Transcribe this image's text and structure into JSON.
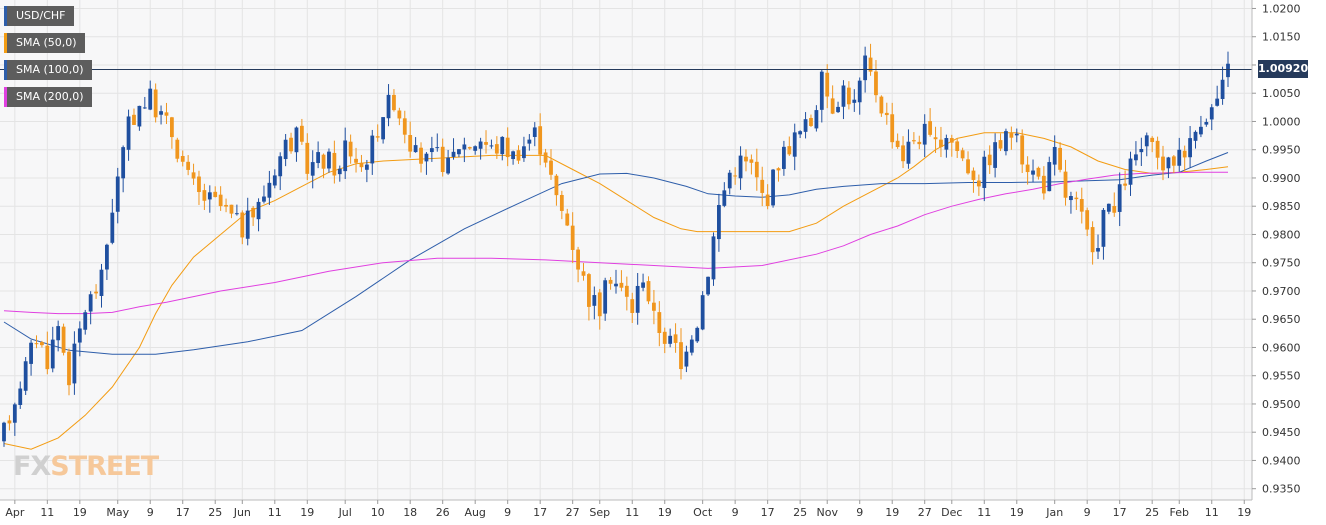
{
  "chart_data": {
    "type": "candlestick",
    "symbol": "USD/CHF",
    "y_ticks": [
      "1.0200",
      "1.0150",
      "1.0100",
      "1.0050",
      "1.0000",
      "0.9950",
      "0.9900",
      "0.9850",
      "0.9800",
      "0.9750",
      "0.9700",
      "0.9650",
      "0.9600",
      "0.9550",
      "0.9500",
      "0.9450",
      "0.9400",
      "0.9350"
    ],
    "x_ticks": [
      "Apr",
      "11",
      "19",
      "May",
      "9",
      "17",
      "25",
      "Jun",
      "11",
      "19",
      "Jul",
      "10",
      "18",
      "26",
      "Aug",
      "9",
      "17",
      "27",
      "Sep",
      "11",
      "19",
      "Oct",
      "9",
      "17",
      "25",
      "Nov",
      "9",
      "19",
      "27",
      "Dec",
      "11",
      "19",
      "Jan",
      "9",
      "17",
      "25",
      "Feb",
      "11",
      "19"
    ],
    "x_tick_index": [
      2,
      8,
      14,
      21,
      27,
      33,
      39,
      44,
      50,
      56,
      63,
      69,
      75,
      81,
      87,
      93,
      99,
      105,
      110,
      116,
      122,
      129,
      135,
      141,
      147,
      152,
      158,
      164,
      170,
      175,
      181,
      187,
      194,
      200,
      206,
      212,
      217,
      223,
      229
    ],
    "ylim": [
      0.933,
      1.0215
    ],
    "last_price_label": "1.00920",
    "last_price": 1.0092,
    "sma": [
      {
        "name": "SMA (50,0)",
        "color": "#f39c12",
        "points": [
          [
            0,
            0.943
          ],
          [
            5,
            0.942
          ],
          [
            10,
            0.944
          ],
          [
            15,
            0.948
          ],
          [
            20,
            0.953
          ],
          [
            25,
            0.96
          ],
          [
            28,
            0.966
          ],
          [
            31,
            0.971
          ],
          [
            35,
            0.976
          ],
          [
            40,
            0.98
          ],
          [
            45,
            0.984
          ],
          [
            50,
            0.986
          ],
          [
            56,
            0.989
          ],
          [
            60,
            0.991
          ],
          [
            65,
            0.9925
          ],
          [
            70,
            0.993
          ],
          [
            80,
            0.9935
          ],
          [
            90,
            0.994
          ],
          [
            100,
            0.994
          ],
          [
            105,
            0.9915
          ],
          [
            110,
            0.989
          ],
          [
            115,
            0.986
          ],
          [
            120,
            0.983
          ],
          [
            125,
            0.981
          ],
          [
            128,
            0.9805
          ],
          [
            135,
            0.9805
          ],
          [
            145,
            0.9805
          ],
          [
            150,
            0.982
          ],
          [
            155,
            0.985
          ],
          [
            160,
            0.9875
          ],
          [
            165,
            0.99
          ],
          [
            168,
            0.992
          ],
          [
            172,
            0.995
          ],
          [
            176,
            0.997
          ],
          [
            181,
            0.998
          ],
          [
            187,
            0.998
          ],
          [
            192,
            0.997
          ],
          [
            197,
            0.9955
          ],
          [
            202,
            0.993
          ],
          [
            207,
            0.9915
          ],
          [
            212,
            0.9908
          ],
          [
            217,
            0.991
          ],
          [
            222,
            0.9915
          ],
          [
            226,
            0.992
          ]
        ]
      },
      {
        "name": "SMA (100,0)",
        "color": "#2e5eaa",
        "points": [
          [
            0,
            0.9645
          ],
          [
            5,
            0.9615
          ],
          [
            12,
            0.9595
          ],
          [
            20,
            0.9588
          ],
          [
            28,
            0.9588
          ],
          [
            35,
            0.9596
          ],
          [
            45,
            0.961
          ],
          [
            55,
            0.963
          ],
          [
            65,
            0.969
          ],
          [
            75,
            0.9755
          ],
          [
            85,
            0.981
          ],
          [
            95,
            0.9855
          ],
          [
            103,
            0.989
          ],
          [
            110,
            0.9907
          ],
          [
            115,
            0.9908
          ],
          [
            120,
            0.99
          ],
          [
            126,
            0.9885
          ],
          [
            130,
            0.9872
          ],
          [
            135,
            0.9868
          ],
          [
            140,
            0.9866
          ],
          [
            145,
            0.987
          ],
          [
            150,
            0.988
          ],
          [
            155,
            0.9885
          ],
          [
            162,
            0.989
          ],
          [
            170,
            0.989
          ],
          [
            178,
            0.9892
          ],
          [
            186,
            0.9892
          ],
          [
            194,
            0.9893
          ],
          [
            200,
            0.9895
          ],
          [
            206,
            0.9897
          ],
          [
            212,
            0.9905
          ],
          [
            217,
            0.991
          ],
          [
            222,
            0.993
          ],
          [
            226,
            0.9945
          ]
        ]
      },
      {
        "name": "SMA (200,0)",
        "color": "#e040e0",
        "points": [
          [
            0,
            0.9665
          ],
          [
            5,
            0.9662
          ],
          [
            10,
            0.966
          ],
          [
            15,
            0.966
          ],
          [
            20,
            0.9662
          ],
          [
            25,
            0.9672
          ],
          [
            30,
            0.968
          ],
          [
            40,
            0.97
          ],
          [
            50,
            0.9715
          ],
          [
            60,
            0.9735
          ],
          [
            70,
            0.975
          ],
          [
            80,
            0.9758
          ],
          [
            90,
            0.9758
          ],
          [
            100,
            0.9755
          ],
          [
            110,
            0.975
          ],
          [
            120,
            0.9745
          ],
          [
            130,
            0.974
          ],
          [
            140,
            0.9745
          ],
          [
            150,
            0.9765
          ],
          [
            155,
            0.978
          ],
          [
            160,
            0.98
          ],
          [
            165,
            0.9815
          ],
          [
            170,
            0.9835
          ],
          [
            175,
            0.985
          ],
          [
            180,
            0.9862
          ],
          [
            185,
            0.9872
          ],
          [
            190,
            0.988
          ],
          [
            195,
            0.989
          ],
          [
            200,
            0.9898
          ],
          [
            205,
            0.9905
          ],
          [
            210,
            0.9908
          ],
          [
            215,
            0.9909
          ],
          [
            220,
            0.991
          ],
          [
            226,
            0.991
          ]
        ]
      }
    ],
    "price_path": [
      [
        0,
        0.945
      ],
      [
        3,
        0.954
      ],
      [
        6,
        0.962
      ],
      [
        8,
        0.958
      ],
      [
        10,
        0.964
      ],
      [
        12,
        0.955
      ],
      [
        15,
        0.967
      ],
      [
        18,
        0.972
      ],
      [
        20,
        0.985
      ],
      [
        23,
        0.999
      ],
      [
        25,
        1.003
      ],
      [
        27,
        1.004
      ],
      [
        29,
        1.001
      ],
      [
        31,
        0.998
      ],
      [
        34,
        0.99
      ],
      [
        36,
        0.987
      ],
      [
        40,
        0.985
      ],
      [
        44,
        0.981
      ],
      [
        47,
        0.985
      ],
      [
        50,
        0.992
      ],
      [
        52,
        0.996
      ],
      [
        54,
        0.997
      ],
      [
        56,
        0.992
      ],
      [
        58,
        0.993
      ],
      [
        60,
        0.993
      ],
      [
        62,
        0.991
      ],
      [
        63,
        0.996
      ],
      [
        66,
        0.992
      ],
      [
        68,
        0.996
      ],
      [
        70,
        1.002
      ],
      [
        72,
        1.004
      ],
      [
        74,
        0.999
      ],
      [
        76,
        0.994
      ],
      [
        78,
        0.993
      ],
      [
        80,
        0.994
      ],
      [
        82,
        0.992
      ],
      [
        84,
        0.996
      ],
      [
        86,
        0.996
      ],
      [
        88,
        0.997
      ],
      [
        90,
        0.995
      ],
      [
        92,
        0.996
      ],
      [
        94,
        0.994
      ],
      [
        96,
        0.996
      ],
      [
        98,
        0.998
      ],
      [
        100,
        0.994
      ],
      [
        102,
        0.986
      ],
      [
        104,
        0.982
      ],
      [
        106,
        0.975
      ],
      [
        108,
        0.969
      ],
      [
        110,
        0.967
      ],
      [
        112,
        0.973
      ],
      [
        114,
        0.97
      ],
      [
        116,
        0.967
      ],
      [
        118,
        0.973
      ],
      [
        120,
        0.965
      ],
      [
        122,
        0.962
      ],
      [
        124,
        0.96
      ],
      [
        125,
        0.956
      ],
      [
        126,
        0.961
      ],
      [
        128,
        0.965
      ],
      [
        130,
        0.974
      ],
      [
        132,
        0.985
      ],
      [
        134,
        0.991
      ],
      [
        136,
        0.993
      ],
      [
        138,
        0.992
      ],
      [
        140,
        0.987
      ],
      [
        141,
        0.987
      ],
      [
        143,
        0.993
      ],
      [
        145,
        0.996
      ],
      [
        147,
        0.998
      ],
      [
        149,
        1.0
      ],
      [
        151,
        1.007
      ],
      [
        153,
        1.003
      ],
      [
        155,
        1.006
      ],
      [
        157,
        1.003
      ],
      [
        159,
        1.01
      ],
      [
        160,
        1.008
      ],
      [
        162,
        1.003
      ],
      [
        164,
        0.998
      ],
      [
        166,
        0.994
      ],
      [
        168,
        0.997
      ],
      [
        170,
        0.998
      ],
      [
        172,
        0.995
      ],
      [
        174,
        0.998
      ],
      [
        176,
        0.995
      ],
      [
        178,
        0.992
      ],
      [
        180,
        0.99
      ],
      [
        182,
        0.994
      ],
      [
        184,
        0.996
      ],
      [
        186,
        0.998
      ],
      [
        188,
        0.994
      ],
      [
        190,
        0.991
      ],
      [
        192,
        0.989
      ],
      [
        194,
        0.994
      ],
      [
        196,
        0.987
      ],
      [
        198,
        0.985
      ],
      [
        200,
        0.98
      ],
      [
        201,
        0.975
      ],
      [
        203,
        0.984
      ],
      [
        205,
        0.984
      ],
      [
        207,
        0.99
      ],
      [
        209,
        0.994
      ],
      [
        211,
        0.996
      ],
      [
        213,
        0.993
      ],
      [
        215,
        0.992
      ],
      [
        217,
        0.995
      ],
      [
        219,
        0.996
      ],
      [
        221,
        1.001
      ],
      [
        223,
        1.002
      ],
      [
        225,
        1.006
      ],
      [
        226,
        1.009
      ]
    ]
  },
  "legend": [
    {
      "label": "USD/CHF",
      "color": "#2e5eaa"
    },
    {
      "label": "SMA (50,0)",
      "color": "#f39c12"
    },
    {
      "label": "SMA (100,0)",
      "color": "#2e5eaa"
    },
    {
      "label": "SMA (200,0)",
      "color": "#e040e0"
    }
  ],
  "colors": {
    "bull": "#1f4f9f",
    "bear": "#f0961e",
    "grid": "#e4e4e4",
    "plot_bg": "#f7f7f8",
    "price_line": "#253a5b"
  },
  "logo": {
    "fx": "FX",
    "street": "STREET"
  }
}
